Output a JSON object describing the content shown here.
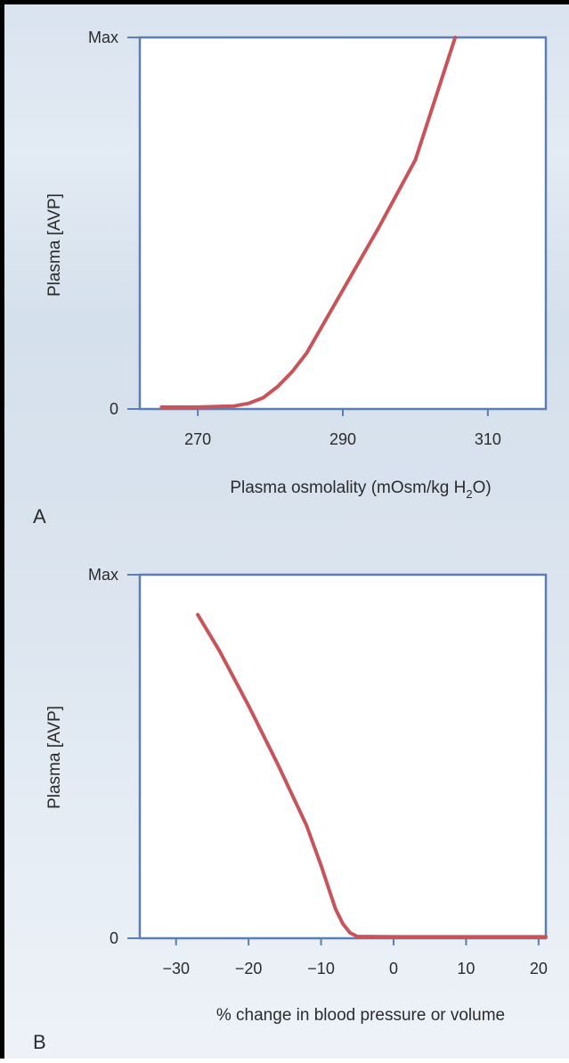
{
  "chart_data": [
    {
      "panel_label": "A",
      "type": "line",
      "xlabel": "Plasma osmolality (mOsm/kg H",
      "xlabel_subscript": "2",
      "xlabel_suffix": "O)",
      "ylabel": "Plasma [AVP]",
      "xlim": [
        262,
        318
      ],
      "ylim": [
        0,
        1
      ],
      "x_ticks": [
        270,
        290,
        310
      ],
      "y_ticks": [
        {
          "value": 0,
          "label": "0"
        },
        {
          "value": 1,
          "label": "Max"
        }
      ],
      "series": [
        {
          "color": "#c8545a",
          "x": [
            265,
            270,
            275,
            277,
            279,
            281,
            283,
            285,
            290,
            295,
            300,
            305.5
          ],
          "y": [
            0.005,
            0.005,
            0.008,
            0.015,
            0.03,
            0.06,
            0.1,
            0.15,
            0.32,
            0.49,
            0.67,
            1.0
          ]
        }
      ]
    },
    {
      "panel_label": "B",
      "type": "line",
      "xlabel": "% change in blood pressure or volume",
      "ylabel": "Plasma [AVP]",
      "xlim": [
        -35,
        21
      ],
      "ylim": [
        0,
        1
      ],
      "x_ticks": [
        -30,
        -20,
        -10,
        0,
        10,
        20
      ],
      "x_tick_labels": [
        "−30",
        "−20",
        "−10",
        "0",
        "10",
        "20"
      ],
      "y_ticks": [
        {
          "value": 0,
          "label": "0"
        },
        {
          "value": 1,
          "label": "Max"
        }
      ],
      "series": [
        {
          "color": "#c8545a",
          "x": [
            -27,
            -24,
            -20,
            -16,
            -12,
            -10,
            -9,
            -8,
            -7,
            -6,
            -5,
            0,
            10,
            21
          ],
          "y": [
            0.89,
            0.79,
            0.64,
            0.48,
            0.31,
            0.2,
            0.14,
            0.08,
            0.04,
            0.015,
            0.005,
            0.004,
            0.004,
            0.004
          ]
        }
      ]
    }
  ]
}
